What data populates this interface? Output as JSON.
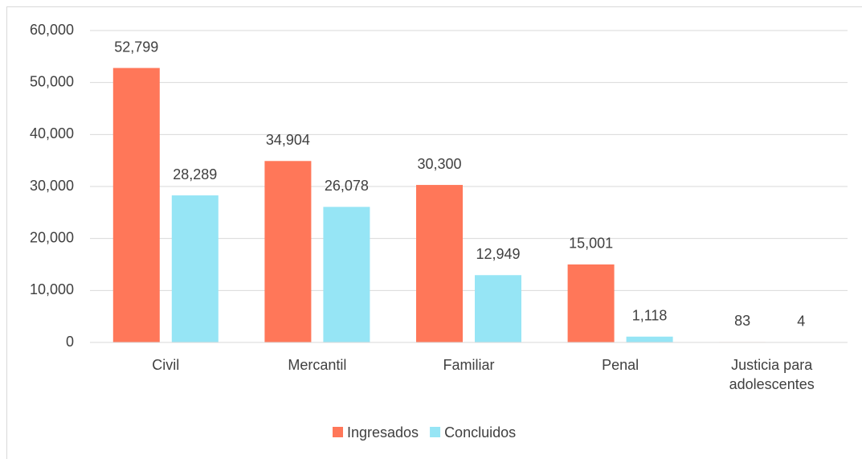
{
  "chart_data": {
    "type": "bar",
    "categories": [
      "Civil",
      "Mercantil",
      "Familiar",
      "Penal",
      "Justicia para adolescentes"
    ],
    "series": [
      {
        "name": "Ingresados",
        "color": "#ff7759",
        "values": [
          52799,
          34904,
          30300,
          15001,
          83
        ],
        "value_labels": [
          "52,799",
          "34,904",
          "30,300",
          "15,001",
          "83"
        ]
      },
      {
        "name": "Concluidos",
        "color": "#96e5f5",
        "values": [
          28289,
          26078,
          12949,
          1118,
          4
        ],
        "value_labels": [
          "28,289",
          "26,078",
          "12,949",
          "1,118",
          "4"
        ]
      }
    ],
    "ylim": [
      0,
      60000
    ],
    "yticks": [
      0,
      {
        "value": 10000,
        "label": "10,000"
      },
      {
        "value": 20000,
        "label": "20,000"
      },
      {
        "value": 30000,
        "label": "30,000"
      },
      {
        "value": 40000,
        "label": "40,000"
      },
      {
        "value": 50000,
        "label": "50,000"
      },
      {
        "value": 60000,
        "label": "60,000"
      }
    ],
    "grid": true,
    "legend": "bottom"
  }
}
